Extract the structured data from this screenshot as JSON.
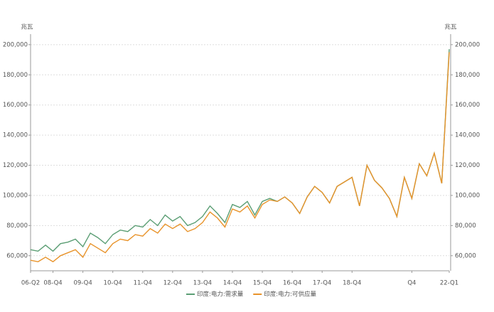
{
  "chart_data": {
    "type": "line",
    "y_unit": "兆瓦",
    "y2_unit": "兆瓦",
    "categories": [
      "06-Q2",
      null,
      null,
      "08-Q4",
      null,
      null,
      null,
      "09-Q4",
      null,
      null,
      null,
      "10-Q4",
      null,
      null,
      null,
      "11-Q4",
      null,
      null,
      null,
      "12-Q4",
      null,
      null,
      null,
      "13-Q4",
      null,
      null,
      null,
      "14-Q4",
      null,
      null,
      null,
      "15-Q4",
      null,
      null,
      null,
      "16-Q4",
      null,
      null,
      null,
      "17-Q4",
      null,
      null,
      null,
      "18-Q4",
      null,
      null,
      null,
      null,
      null,
      null,
      null,
      "Q4",
      null,
      null,
      null,
      null,
      "22-Q1"
    ],
    "series": [
      {
        "name": "印度:电力:需求量",
        "color": "#5b9e74",
        "values": [
          64000,
          63000,
          67000,
          63000,
          68000,
          69000,
          71000,
          66000,
          75000,
          72000,
          68000,
          74000,
          77000,
          76000,
          80000,
          79000,
          84000,
          80000,
          87000,
          83000,
          86000,
          80000,
          82000,
          86000,
          93000,
          88000,
          82000,
          94000,
          92000,
          96000,
          87000,
          96000,
          98000,
          96000,
          99000,
          95000,
          88000,
          99000,
          106000,
          102000,
          95000,
          106000,
          109000,
          112000,
          93000,
          120000,
          110000,
          105000,
          98000,
          86000,
          112000,
          98000,
          121000,
          113000,
          128000,
          108000,
          197000
        ]
      },
      {
        "name": "印度:电力:可供应量",
        "color": "#e8932a",
        "values": [
          57000,
          56000,
          59000,
          56000,
          60000,
          62000,
          64000,
          59000,
          68000,
          65000,
          62000,
          68000,
          71000,
          70000,
          74000,
          73000,
          78000,
          75000,
          81000,
          78000,
          81000,
          76000,
          78000,
          82000,
          89000,
          85000,
          79000,
          91000,
          89000,
          93000,
          85000,
          94000,
          97000,
          96000,
          99000,
          95000,
          88000,
          99000,
          106000,
          102000,
          95000,
          106000,
          109000,
          112000,
          93000,
          120000,
          110000,
          105000,
          98000,
          86000,
          112000,
          98000,
          121000,
          113000,
          128000,
          108000,
          195000
        ]
      }
    ],
    "ylim": [
      50000,
      207000
    ],
    "yticks": [
      {
        "value": 60000,
        "label": "60,000"
      },
      {
        "value": 80000,
        "label": "80,000"
      },
      {
        "value": 100000,
        "label": "100,000"
      },
      {
        "value": 120000,
        "label": "120,000"
      },
      {
        "value": 140000,
        "label": "140,000"
      },
      {
        "value": 160000,
        "label": "160,000"
      },
      {
        "value": 180000,
        "label": "180,000"
      },
      {
        "value": 200000,
        "label": "200,000"
      }
    ],
    "y2lim": [
      50000,
      207000
    ],
    "y2ticks": [
      {
        "value": 60000,
        "label": "60,000"
      },
      {
        "value": 80000,
        "label": "80,000"
      },
      {
        "value": 100000,
        "label": "100,000"
      },
      {
        "value": 120000,
        "label": "120,000"
      },
      {
        "value": 140000,
        "label": "140,000"
      },
      {
        "value": 160000,
        "label": "160,000"
      },
      {
        "value": 180000,
        "label": "180,000"
      },
      {
        "value": 200000,
        "label": "200,000"
      }
    ],
    "grid": true
  }
}
